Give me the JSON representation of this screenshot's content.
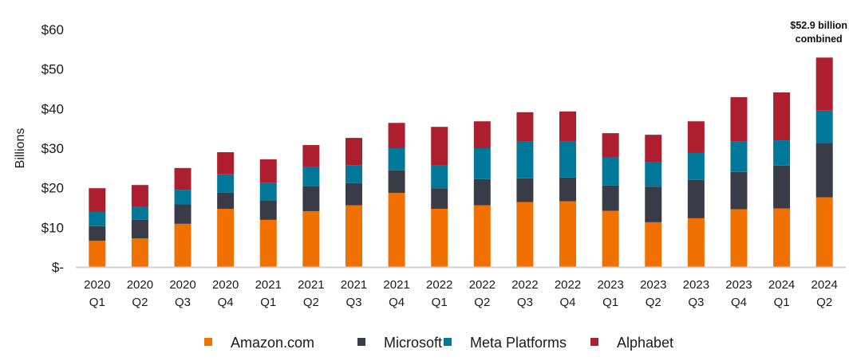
{
  "chart_data": {
    "type": "bar",
    "stacked": true,
    "title": "",
    "xlabel": "",
    "ylabel": "Billions",
    "ylim": [
      0,
      60
    ],
    "yticks": [
      0,
      10,
      20,
      30,
      40,
      50,
      60
    ],
    "ytick_labels": [
      "$-",
      "$10",
      "$20",
      "$30",
      "$40",
      "$50",
      "$60"
    ],
    "grid": false,
    "legend_position": "bottom",
    "categories": [
      [
        "2020",
        "Q1"
      ],
      [
        "2020",
        "Q2"
      ],
      [
        "2020",
        "Q3"
      ],
      [
        "2020",
        "Q4"
      ],
      [
        "2021",
        "Q1"
      ],
      [
        "2021",
        "Q2"
      ],
      [
        "2021",
        "Q3"
      ],
      [
        "2021",
        "Q4"
      ],
      [
        "2022",
        "Q1"
      ],
      [
        "2022",
        "Q2"
      ],
      [
        "2022",
        "Q3"
      ],
      [
        "2022",
        "Q4"
      ],
      [
        "2023",
        "Q1"
      ],
      [
        "2023",
        "Q2"
      ],
      [
        "2023",
        "Q3"
      ],
      [
        "2023",
        "Q4"
      ],
      [
        "2024",
        "Q1"
      ],
      [
        "2024",
        "Q2"
      ]
    ],
    "series": [
      {
        "name": "Amazon.com",
        "color": "#f07000",
        "values": [
          6.6,
          7.2,
          10.9,
          14.7,
          11.9,
          14.1,
          15.6,
          18.7,
          14.7,
          15.6,
          16.4,
          16.6,
          14.2,
          11.3,
          12.3,
          14.6,
          14.8,
          17.6
        ]
      },
      {
        "name": "Microsoft",
        "color": "#393c47",
        "values": [
          3.7,
          4.7,
          4.9,
          4.1,
          4.9,
          6.3,
          5.6,
          5.7,
          5.2,
          6.6,
          6.0,
          6.0,
          6.4,
          9.0,
          9.7,
          9.4,
          10.8,
          13.7
        ]
      },
      {
        "name": "Meta Platforms",
        "color": "#00789a",
        "values": [
          3.6,
          3.4,
          3.7,
          4.6,
          4.5,
          4.8,
          4.5,
          5.6,
          5.7,
          7.8,
          9.4,
          9.2,
          7.0,
          6.1,
          6.8,
          7.8,
          6.4,
          8.2
        ]
      },
      {
        "name": "Alphabet",
        "color": "#ad1e2e",
        "values": [
          6.0,
          5.4,
          5.5,
          5.6,
          5.9,
          5.6,
          6.9,
          6.4,
          9.8,
          6.8,
          7.3,
          7.5,
          6.2,
          7.0,
          8.0,
          11.1,
          12.1,
          13.4
        ]
      }
    ],
    "annotations": [
      {
        "category_index": 17,
        "lines": [
          "$52.9 billion",
          "combined"
        ]
      }
    ]
  },
  "colors": {
    "axis": "#d0d0d0"
  }
}
